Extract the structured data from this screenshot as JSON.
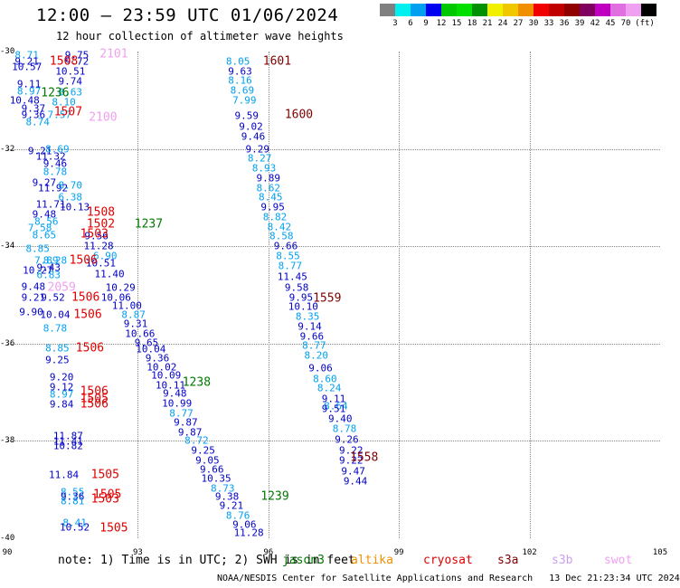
{
  "header": {
    "title": "12:00 — 23:59 UTC 01/06/2024",
    "subtitle": "12 hour collection of altimeter wave heights"
  },
  "legend": {
    "colors": [
      "#808080",
      "#00f0f0",
      "#00a0f0",
      "#0000f0",
      "#00c800",
      "#00e000",
      "#009000",
      "#f0f000",
      "#f0c800",
      "#f09000",
      "#f00000",
      "#c00000",
      "#900000",
      "#800060",
      "#c000c0",
      "#e070e0",
      "#f0a0f0",
      "#000000"
    ],
    "ticks": [
      "3",
      "6",
      "9",
      "12",
      "15",
      "18",
      "21",
      "24",
      "27",
      "30",
      "33",
      "36",
      "39",
      "42",
      "45",
      "70",
      "(ft)"
    ]
  },
  "axes": {
    "x_ticks": [
      "90",
      "93",
      "96",
      "99",
      "102",
      "105"
    ],
    "y_ticks": [
      "-30",
      "-32",
      "-34",
      "-36",
      "-38",
      "-40"
    ]
  },
  "colors": {
    "h_lt6": "#00c0e0",
    "h_6to9": "#00a0f0",
    "h_9to12": "#0000c8",
    "h_12to15": "#00c800",
    "jason3": "#007800",
    "altika": "#f09000",
    "cryosat": "#e00000",
    "s3a": "#800000",
    "s3b": "#c8a0f0",
    "swot": "#f0a0f0"
  },
  "chart_data": {
    "type": "scatter",
    "title": "12:00 — 23:59 UTC 01/06/2024",
    "subtitle": "12 hour collection of altimeter wave heights",
    "xlabel": "",
    "ylabel": "",
    "xlim": [
      90,
      105
    ],
    "ylim": [
      -40,
      -30
    ],
    "units": "ft",
    "points": [
      {
        "lon": 90.45,
        "lat": -30.07,
        "v": "8.71"
      },
      {
        "lon": 91.6,
        "lat": -30.07,
        "v": "9.75"
      },
      {
        "lon": 90.45,
        "lat": -30.2,
        "v": "9.21"
      },
      {
        "lon": 91.6,
        "lat": -30.2,
        "v": "9.72"
      },
      {
        "lon": 90.45,
        "lat": -30.32,
        "v": "10.57"
      },
      {
        "lon": 91.45,
        "lat": -30.4,
        "v": "10.51"
      },
      {
        "lon": 91.45,
        "lat": -30.62,
        "v": "9.74"
      },
      {
        "lon": 90.5,
        "lat": -30.67,
        "v": "9.11"
      },
      {
        "lon": 90.5,
        "lat": -30.82,
        "v": "8.97"
      },
      {
        "lon": 91.45,
        "lat": -30.84,
        "v": "8.63"
      },
      {
        "lon": 90.4,
        "lat": -31.0,
        "v": "10.48"
      },
      {
        "lon": 91.3,
        "lat": -31.05,
        "v": "8.10"
      },
      {
        "lon": 90.6,
        "lat": -31.18,
        "v": "9.37"
      },
      {
        "lon": 90.6,
        "lat": -31.3,
        "v": "9.36"
      },
      {
        "lon": 91.2,
        "lat": -31.3,
        "v": "7.57"
      },
      {
        "lon": 90.7,
        "lat": -31.45,
        "v": "8.74"
      },
      {
        "lon": 90.75,
        "lat": -32.05,
        "v": "9.21"
      },
      {
        "lon": 91.15,
        "lat": -32.0,
        "v": "8.69"
      },
      {
        "lon": 91.0,
        "lat": -32.15,
        "v": "11.32"
      },
      {
        "lon": 91.1,
        "lat": -32.3,
        "v": "9.46"
      },
      {
        "lon": 91.1,
        "lat": -32.48,
        "v": "8.78"
      },
      {
        "lon": 90.85,
        "lat": -32.7,
        "v": "9.27"
      },
      {
        "lon": 91.05,
        "lat": -32.8,
        "v": "11.92"
      },
      {
        "lon": 91.45,
        "lat": -32.75,
        "v": "8.70"
      },
      {
        "lon": 91.45,
        "lat": -33.0,
        "v": "6.38"
      },
      {
        "lon": 91.0,
        "lat": -33.15,
        "v": "11.71"
      },
      {
        "lon": 91.55,
        "lat": -33.2,
        "v": "10.13"
      },
      {
        "lon": 90.85,
        "lat": -33.35,
        "v": "9.48"
      },
      {
        "lon": 90.9,
        "lat": -33.5,
        "v": "8.56"
      },
      {
        "lon": 90.75,
        "lat": -33.63,
        "v": "7.58"
      },
      {
        "lon": 90.85,
        "lat": -33.78,
        "v": "8.65"
      },
      {
        "lon": 92.05,
        "lat": -33.8,
        "v": "9.56"
      },
      {
        "lon": 90.7,
        "lat": -34.05,
        "v": "8.85"
      },
      {
        "lon": 92.1,
        "lat": -34.0,
        "v": "11.28"
      },
      {
        "lon": 92.25,
        "lat": -34.2,
        "v": "6.90"
      },
      {
        "lon": 90.9,
        "lat": -34.3,
        "v": "7.89"
      },
      {
        "lon": 91.1,
        "lat": -34.3,
        "v": "8.28"
      },
      {
        "lon": 92.15,
        "lat": -34.35,
        "v": "10.51"
      },
      {
        "lon": 90.7,
        "lat": -34.5,
        "v": "10.27"
      },
      {
        "lon": 90.95,
        "lat": -34.45,
        "v": "9.43"
      },
      {
        "lon": 90.95,
        "lat": -34.6,
        "v": "6.83"
      },
      {
        "lon": 92.35,
        "lat": -34.57,
        "v": "11.40"
      },
      {
        "lon": 90.6,
        "lat": -34.83,
        "v": "9.48"
      },
      {
        "lon": 92.6,
        "lat": -34.85,
        "v": "10.29"
      },
      {
        "lon": 90.6,
        "lat": -35.05,
        "v": "9.21"
      },
      {
        "lon": 91.05,
        "lat": -35.05,
        "v": "9.52"
      },
      {
        "lon": 92.5,
        "lat": -35.05,
        "v": "10.06"
      },
      {
        "lon": 92.75,
        "lat": -35.23,
        "v": "11.00"
      },
      {
        "lon": 90.55,
        "lat": -35.35,
        "v": "9.90"
      },
      {
        "lon": 91.1,
        "lat": -35.4,
        "v": "10.04"
      },
      {
        "lon": 92.9,
        "lat": -35.4,
        "v": "8.87"
      },
      {
        "lon": 92.95,
        "lat": -35.6,
        "v": "9.31"
      },
      {
        "lon": 91.1,
        "lat": -35.68,
        "v": "8.78"
      },
      {
        "lon": 93.05,
        "lat": -35.8,
        "v": "10.66"
      },
      {
        "lon": 93.2,
        "lat": -35.98,
        "v": "9.65"
      },
      {
        "lon": 91.15,
        "lat": -36.1,
        "v": "8.85"
      },
      {
        "lon": 93.3,
        "lat": -36.12,
        "v": "10.04"
      },
      {
        "lon": 91.15,
        "lat": -36.33,
        "v": "9.25"
      },
      {
        "lon": 93.45,
        "lat": -36.3,
        "v": "9.36"
      },
      {
        "lon": 93.55,
        "lat": -36.48,
        "v": "10.02"
      },
      {
        "lon": 93.65,
        "lat": -36.65,
        "v": "10.09"
      },
      {
        "lon": 91.25,
        "lat": -36.7,
        "v": "9.20"
      },
      {
        "lon": 93.75,
        "lat": -36.85,
        "v": "10.11"
      },
      {
        "lon": 91.25,
        "lat": -36.9,
        "v": "9.12"
      },
      {
        "lon": 91.25,
        "lat": -37.05,
        "v": "8.97"
      },
      {
        "lon": 93.85,
        "lat": -37.03,
        "v": "9.48"
      },
      {
        "lon": 91.25,
        "lat": -37.25,
        "v": "9.84"
      },
      {
        "lon": 93.9,
        "lat": -37.23,
        "v": "10.99"
      },
      {
        "lon": 94.0,
        "lat": -37.43,
        "v": "8.77"
      },
      {
        "lon": 94.1,
        "lat": -37.62,
        "v": "9.87"
      },
      {
        "lon": 94.2,
        "lat": -37.82,
        "v": "9.87"
      },
      {
        "lon": 91.4,
        "lat": -37.9,
        "v": "11.87"
      },
      {
        "lon": 91.4,
        "lat": -38.02,
        "v": "11.41"
      },
      {
        "lon": 94.35,
        "lat": -38.0,
        "v": "8.72"
      },
      {
        "lon": 91.4,
        "lat": -38.1,
        "v": "10.82"
      },
      {
        "lon": 94.5,
        "lat": -38.2,
        "v": "9.25"
      },
      {
        "lon": 94.6,
        "lat": -38.4,
        "v": "9.05"
      },
      {
        "lon": 94.7,
        "lat": -38.58,
        "v": "9.66"
      },
      {
        "lon": 91.3,
        "lat": -38.7,
        "v": "11.84"
      },
      {
        "lon": 94.8,
        "lat": -38.77,
        "v": "10.35"
      },
      {
        "lon": 94.95,
        "lat": -38.97,
        "v": "8.73"
      },
      {
        "lon": 91.5,
        "lat": -39.05,
        "v": "8.55"
      },
      {
        "lon": 91.5,
        "lat": -39.15,
        "v": "9.36"
      },
      {
        "lon": 91.5,
        "lat": -39.23,
        "v": "8.81"
      },
      {
        "lon": 95.05,
        "lat": -39.15,
        "v": "9.38"
      },
      {
        "lon": 95.15,
        "lat": -39.33,
        "v": "9.21"
      },
      {
        "lon": 95.3,
        "lat": -39.53,
        "v": "8.76"
      },
      {
        "lon": 91.55,
        "lat": -39.68,
        "v": "8.41"
      },
      {
        "lon": 91.55,
        "lat": -39.78,
        "v": "10.52"
      },
      {
        "lon": 95.45,
        "lat": -39.72,
        "v": "9.06"
      },
      {
        "lon": 95.55,
        "lat": -39.88,
        "v": "11.28"
      },
      {
        "lon": 95.3,
        "lat": -30.2,
        "v": "8.05"
      },
      {
        "lon": 95.35,
        "lat": -30.4,
        "v": "9.63"
      },
      {
        "lon": 95.35,
        "lat": -30.6,
        "v": "8.16"
      },
      {
        "lon": 95.4,
        "lat": -30.8,
        "v": "8.69"
      },
      {
        "lon": 95.45,
        "lat": -31.0,
        "v": "7.99"
      },
      {
        "lon": 95.5,
        "lat": -31.32,
        "v": "9.59"
      },
      {
        "lon": 95.6,
        "lat": -31.55,
        "v": "9.02"
      },
      {
        "lon": 95.65,
        "lat": -31.75,
        "v": "9.46"
      },
      {
        "lon": 95.75,
        "lat": -32.0,
        "v": "9.29"
      },
      {
        "lon": 95.8,
        "lat": -32.2,
        "v": "8.27"
      },
      {
        "lon": 95.9,
        "lat": -32.4,
        "v": "8.93"
      },
      {
        "lon": 96.0,
        "lat": -32.6,
        "v": "9.89"
      },
      {
        "lon": 96.0,
        "lat": -32.8,
        "v": "8.62"
      },
      {
        "lon": 96.05,
        "lat": -33.0,
        "v": "8.45"
      },
      {
        "lon": 96.1,
        "lat": -33.2,
        "v": "9.95"
      },
      {
        "lon": 96.15,
        "lat": -33.4,
        "v": "8.82"
      },
      {
        "lon": 96.25,
        "lat": -33.6,
        "v": "8.42"
      },
      {
        "lon": 96.3,
        "lat": -33.8,
        "v": "8.58"
      },
      {
        "lon": 96.4,
        "lat": -34.0,
        "v": "9.66"
      },
      {
        "lon": 96.45,
        "lat": -34.2,
        "v": "8.55"
      },
      {
        "lon": 96.5,
        "lat": -34.4,
        "v": "8.77"
      },
      {
        "lon": 96.55,
        "lat": -34.62,
        "v": "11.45"
      },
      {
        "lon": 96.65,
        "lat": -34.85,
        "v": "9.58"
      },
      {
        "lon": 96.75,
        "lat": -35.05,
        "v": "9.95"
      },
      {
        "lon": 96.8,
        "lat": -35.25,
        "v": "10.10"
      },
      {
        "lon": 96.9,
        "lat": -35.45,
        "v": "8.35"
      },
      {
        "lon": 96.95,
        "lat": -35.65,
        "v": "9.14"
      },
      {
        "lon": 97.0,
        "lat": -35.85,
        "v": "9.66"
      },
      {
        "lon": 97.05,
        "lat": -36.05,
        "v": "8.77"
      },
      {
        "lon": 97.1,
        "lat": -36.25,
        "v": "8.20"
      },
      {
        "lon": 97.2,
        "lat": -36.5,
        "v": "9.06"
      },
      {
        "lon": 97.3,
        "lat": -36.72,
        "v": "8.60"
      },
      {
        "lon": 97.4,
        "lat": -36.92,
        "v": "8.24"
      },
      {
        "lon": 97.5,
        "lat": -37.13,
        "v": "9.11"
      },
      {
        "lon": 97.55,
        "lat": -37.28,
        "v": "8.64"
      },
      {
        "lon": 97.5,
        "lat": -37.35,
        "v": "9.51"
      },
      {
        "lon": 97.65,
        "lat": -37.55,
        "v": "9.40"
      },
      {
        "lon": 97.75,
        "lat": -37.75,
        "v": "8.78"
      },
      {
        "lon": 97.8,
        "lat": -37.97,
        "v": "9.26"
      },
      {
        "lon": 97.9,
        "lat": -38.2,
        "v": "9.22"
      },
      {
        "lon": 97.9,
        "lat": -38.4,
        "v": "9.22"
      },
      {
        "lon": 97.95,
        "lat": -38.62,
        "v": "9.47"
      },
      {
        "lon": 98.0,
        "lat": -38.82,
        "v": "9.44"
      }
    ],
    "pass_ids": [
      {
        "lon": 92.45,
        "lat": -30.05,
        "id": "2101",
        "sat": "swot"
      },
      {
        "lon": 91.3,
        "lat": -30.2,
        "id": "1508",
        "sat": "cryosat"
      },
      {
        "lon": 96.2,
        "lat": -30.2,
        "id": "1601",
        "sat": "s3a"
      },
      {
        "lon": 91.1,
        "lat": -30.85,
        "id": "1236",
        "sat": "jason3"
      },
      {
        "lon": 91.4,
        "lat": -31.25,
        "id": "1507",
        "sat": "cryosat"
      },
      {
        "lon": 92.2,
        "lat": -31.35,
        "id": "2100",
        "sat": "swot"
      },
      {
        "lon": 96.7,
        "lat": -31.3,
        "id": "1600",
        "sat": "s3a"
      },
      {
        "lon": 92.15,
        "lat": -33.3,
        "id": "1508",
        "sat": "cryosat"
      },
      {
        "lon": 92.15,
        "lat": -33.55,
        "id": "1502",
        "sat": "cryosat"
      },
      {
        "lon": 92.0,
        "lat": -33.75,
        "id": "1503",
        "sat": "cryosat"
      },
      {
        "lon": 93.25,
        "lat": -33.55,
        "id": "1237",
        "sat": "jason3"
      },
      {
        "lon": 91.75,
        "lat": -34.3,
        "id": "1506",
        "sat": "cryosat"
      },
      {
        "lon": 91.25,
        "lat": -34.85,
        "id": "2059",
        "sat": "swot"
      },
      {
        "lon": 91.8,
        "lat": -35.05,
        "id": "1506",
        "sat": "cryosat"
      },
      {
        "lon": 97.35,
        "lat": -35.08,
        "id": "1559",
        "sat": "s3a"
      },
      {
        "lon": 91.85,
        "lat": -35.4,
        "id": "1506",
        "sat": "cryosat"
      },
      {
        "lon": 91.9,
        "lat": -36.1,
        "id": "1506",
        "sat": "cryosat"
      },
      {
        "lon": 94.35,
        "lat": -36.8,
        "id": "1238",
        "sat": "jason3"
      },
      {
        "lon": 92.0,
        "lat": -36.98,
        "id": "1506",
        "sat": "cryosat"
      },
      {
        "lon": 92.0,
        "lat": -37.13,
        "id": "1505",
        "sat": "cryosat"
      },
      {
        "lon": 92.0,
        "lat": -37.25,
        "id": "1506",
        "sat": "cryosat"
      },
      {
        "lon": 98.2,
        "lat": -38.35,
        "id": "1558",
        "sat": "s3a"
      },
      {
        "lon": 92.25,
        "lat": -38.7,
        "id": "1505",
        "sat": "cryosat"
      },
      {
        "lon": 92.3,
        "lat": -39.1,
        "id": "1505",
        "sat": "cryosat"
      },
      {
        "lon": 92.25,
        "lat": -39.2,
        "id": "1503",
        "sat": "cryosat"
      },
      {
        "lon": 96.15,
        "lat": -39.15,
        "id": "1239",
        "sat": "jason3"
      },
      {
        "lon": 92.45,
        "lat": -39.8,
        "id": "1505",
        "sat": "cryosat"
      }
    ]
  },
  "footer": {
    "note": "note: 1) Time is in UTC; 2) SWH is in feet",
    "satellites": [
      "jason3",
      "altika",
      "cryosat",
      "s3a",
      "s3b",
      "swot"
    ],
    "credit": "NOAA/NESDIS Center for Satellite Applications and Research   13 Dec 21:23:34 UTC 2024"
  }
}
